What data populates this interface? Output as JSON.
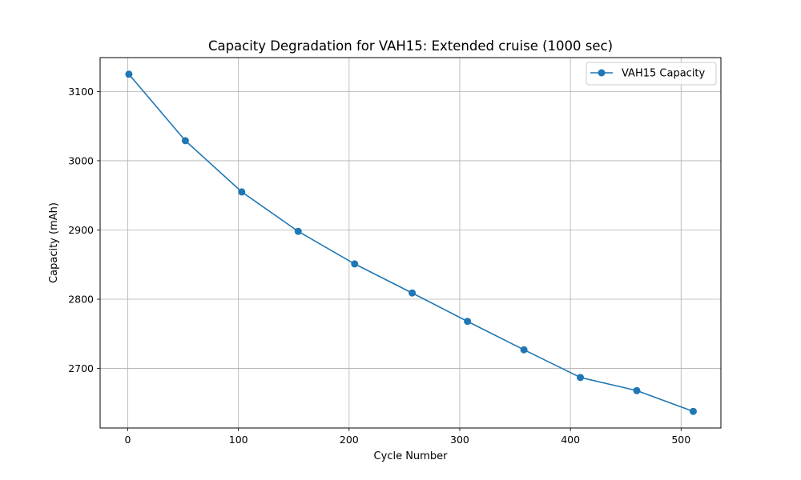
{
  "chart_data": {
    "type": "line",
    "title": "Capacity Degradation for VAH15: Extended cruise (1000 sec)",
    "xlabel": "Cycle Number",
    "ylabel": "Capacity (mAh)",
    "xlim": [
      -25,
      536
    ],
    "ylim": [
      2614,
      3149
    ],
    "xticks": [
      0,
      100,
      200,
      300,
      400,
      500
    ],
    "yticks": [
      2700,
      2800,
      2900,
      3000,
      3100
    ],
    "grid": true,
    "legend_position": "top-right",
    "series": [
      {
        "name": "VAH15 Capacity",
        "color": "#1f77b4",
        "marker": "circle",
        "x": [
          1,
          52,
          103,
          154,
          205,
          257,
          307,
          358,
          409,
          460,
          511
        ],
        "y": [
          3125,
          3029,
          2955,
          2898,
          2851,
          2809,
          2768,
          2727,
          2687,
          2668,
          2638
        ]
      }
    ]
  }
}
